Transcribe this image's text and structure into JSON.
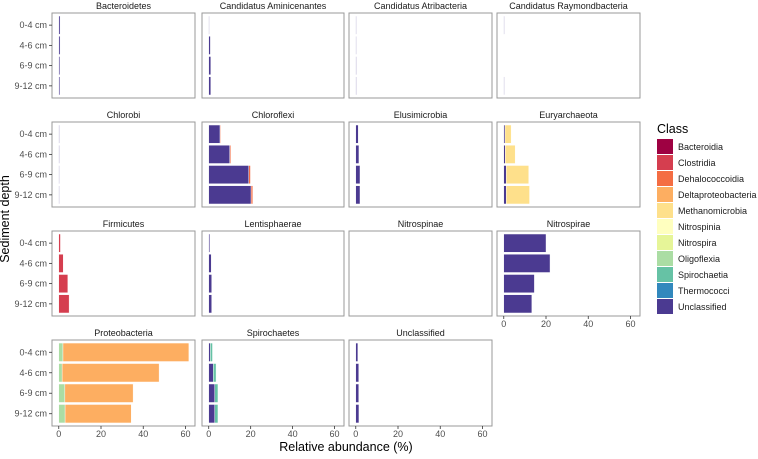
{
  "chart_data": {
    "type": "bar",
    "orientation": "horizontal",
    "stacked": true,
    "faceted": true,
    "xlabel": "Relative abundance (%)",
    "ylabel": "Sediment depth",
    "xlim": [
      -3.2,
      64.5
    ],
    "xticks": [
      0,
      20,
      40,
      60
    ],
    "categories": [
      "0-4 cm",
      "4-6 cm",
      "6-9 cm",
      "9-12 cm"
    ],
    "legend": {
      "title": "Class",
      "position": "right",
      "entries": [
        {
          "name": "Bacteroidia",
          "color": "#9E0142"
        },
        {
          "name": "Clostridia",
          "color": "#D53E4F"
        },
        {
          "name": "Dehalococcoidia",
          "color": "#F46D43"
        },
        {
          "name": "Deltaproteobacteria",
          "color": "#FDAE61"
        },
        {
          "name": "Methanomicrobia",
          "color": "#FEE08B"
        },
        {
          "name": "Nitrospinia",
          "color": "#FFFFBF"
        },
        {
          "name": "Nitrospira",
          "color": "#E6F598"
        },
        {
          "name": "Oligoflexia",
          "color": "#ABDDA4"
        },
        {
          "name": "Spirochaetia",
          "color": "#66C2A5"
        },
        {
          "name": "Thermococci",
          "color": "#3288BD"
        },
        {
          "name": "Unclassified",
          "color": "#4B3A91"
        }
      ]
    },
    "facets": [
      {
        "title": "Bacteroidetes",
        "series": [
          {
            "name": "Unclassified",
            "values": [
              0.6,
              0.6,
              0.5,
              0.5
            ]
          }
        ]
      },
      {
        "title": "Candidatus Aminicenantes",
        "series": [
          {
            "name": "Unclassified",
            "values": [
              0.3,
              0.8,
              1.0,
              1.0
            ]
          }
        ]
      },
      {
        "title": "Candidatus Atribacteria",
        "series": [
          {
            "name": "Unclassified",
            "values": [
              0.2,
              0.2,
              0.3,
              0.3
            ]
          }
        ]
      },
      {
        "title": "Candidatus Raymondbacteria",
        "series": [
          {
            "name": "Unclassified",
            "values": [
              0.2,
              0.0,
              0.0,
              0.2
            ]
          }
        ]
      },
      {
        "title": "Chlorobi",
        "series": [
          {
            "name": "Unclassified",
            "values": [
              0.3,
              0.3,
              0.15,
              0.15
            ]
          }
        ]
      },
      {
        "title": "Chloroflexi",
        "series": [
          {
            "name": "Unclassified",
            "values": [
              5.4,
              10.0,
              19.1,
              20.2
            ]
          },
          {
            "name": "Dehalococcoidia",
            "values": [
              0.3,
              0.5,
              0.8,
              0.8
            ]
          }
        ]
      },
      {
        "title": "Elusimicrobia",
        "series": [
          {
            "name": "Unclassified",
            "values": [
              1.2,
              1.5,
              2.0,
              2.0
            ]
          }
        ]
      },
      {
        "title": "Euryarchaeota",
        "series": [
          {
            "name": "Unclassified",
            "values": [
              0.6,
              0.7,
              1.2,
              1.2
            ]
          },
          {
            "name": "Methanomicrobia",
            "values": [
              2.9,
              4.7,
              10.6,
              11.0
            ]
          }
        ]
      },
      {
        "title": "Firmicutes",
        "series": [
          {
            "name": "Clostridia",
            "values": [
              0.8,
              2.1,
              4.3,
              4.9
            ]
          }
        ]
      },
      {
        "title": "Lentisphaerae",
        "series": [
          {
            "name": "Unclassified",
            "values": [
              0.5,
              1.2,
              1.4,
              1.4
            ]
          }
        ]
      },
      {
        "title": "Nitrospinae",
        "series": [
          {
            "name": "Nitrospinia",
            "values": [
              0,
              0,
              0,
              0
            ]
          }
        ]
      },
      {
        "title": "Nitrospirae",
        "series": [
          {
            "name": "Unclassified",
            "values": [
              20.0,
              21.9,
              14.5,
              13.3
            ]
          }
        ]
      },
      {
        "title": "Proteobacteria",
        "series": [
          {
            "name": "Oligoflexia",
            "values": [
              2.0,
              1.6,
              2.9,
              3.0
            ]
          },
          {
            "name": "Deltaproteobacteria",
            "values": [
              59.6,
              45.9,
              32.3,
              31.3
            ]
          }
        ]
      },
      {
        "title": "Spirochaetes",
        "series": [
          {
            "name": "Unclassified",
            "values": [
              0.8,
              2.2,
              2.9,
              2.9
            ]
          },
          {
            "name": "Spirochaetia",
            "values": [
              1.0,
              1.3,
              1.5,
              1.5
            ]
          }
        ]
      },
      {
        "title": "Unclassified",
        "series": [
          {
            "name": "Unclassified",
            "values": [
              1.0,
              1.4,
              1.4,
              1.5
            ]
          }
        ]
      }
    ]
  }
}
